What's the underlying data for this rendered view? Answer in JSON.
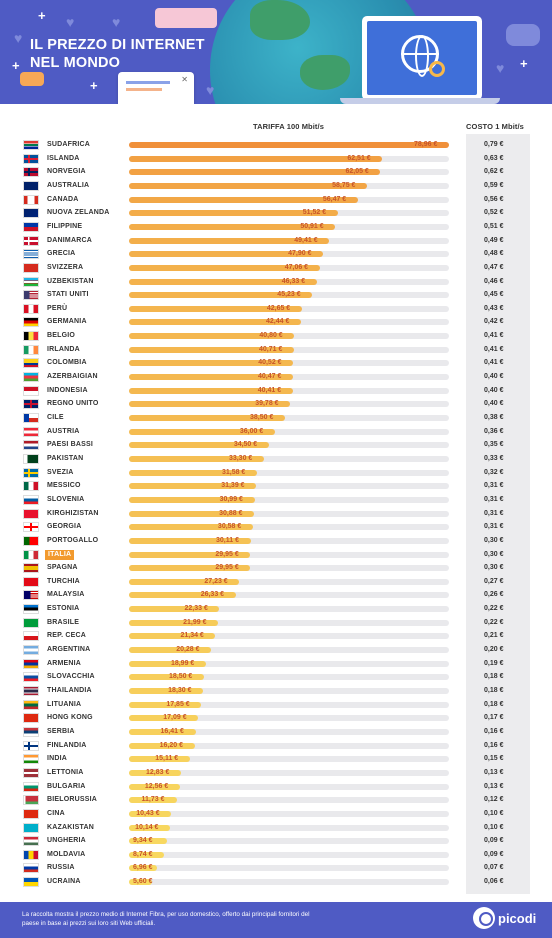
{
  "header": {
    "title_line1": "IL PREZZO DI INTERNET",
    "title_line2": "NEL MONDO"
  },
  "columns": {
    "tariff": "TARIFFA 100 Mbit/s",
    "cost": "COSTO 1 Mbit/s"
  },
  "chart_data": {
    "type": "bar",
    "orientation": "horizontal",
    "value_max": 78.96,
    "highlight": "ITALIA",
    "rows": [
      {
        "country": "SUDAFRICA",
        "price": 78.96,
        "price_label": "78,96 €",
        "cost_label": "0,79 €",
        "flag": "za"
      },
      {
        "country": "ISLANDA",
        "price": 62.51,
        "price_label": "62,51 €",
        "cost_label": "0,63 €",
        "flag": "is"
      },
      {
        "country": "NORVEGIA",
        "price": 62.05,
        "price_label": "62,05 €",
        "cost_label": "0,62 €",
        "flag": "no"
      },
      {
        "country": "AUSTRALIA",
        "price": 58.75,
        "price_label": "58,75 €",
        "cost_label": "0,59 €",
        "flag": "au"
      },
      {
        "country": "CANADA",
        "price": 56.47,
        "price_label": "56,47 €",
        "cost_label": "0,56 €",
        "flag": "ca"
      },
      {
        "country": "NUOVA ZELANDA",
        "price": 51.52,
        "price_label": "51,52 €",
        "cost_label": "0,52 €",
        "flag": "nz"
      },
      {
        "country": "FILIPPINE",
        "price": 50.91,
        "price_label": "50,91 €",
        "cost_label": "0,51 €",
        "flag": "ph"
      },
      {
        "country": "DANIMARCA",
        "price": 49.41,
        "price_label": "49,41 €",
        "cost_label": "0,49 €",
        "flag": "dk"
      },
      {
        "country": "GRECIA",
        "price": 47.9,
        "price_label": "47,90 €",
        "cost_label": "0,48 €",
        "flag": "gr"
      },
      {
        "country": "SVIZZERA",
        "price": 47.06,
        "price_label": "47,06 €",
        "cost_label": "0,47 €",
        "flag": "ch"
      },
      {
        "country": "UZBEKISTAN",
        "price": 46.33,
        "price_label": "46,33 €",
        "cost_label": "0,46 €",
        "flag": "uz"
      },
      {
        "country": "STATI UNITI",
        "price": 45.23,
        "price_label": "45,23 €",
        "cost_label": "0,45 €",
        "flag": "us"
      },
      {
        "country": "PERÙ",
        "price": 42.65,
        "price_label": "42,65 €",
        "cost_label": "0,43 €",
        "flag": "pe"
      },
      {
        "country": "GERMANIA",
        "price": 42.44,
        "price_label": "42,44 €",
        "cost_label": "0,42 €",
        "flag": "de"
      },
      {
        "country": "BELGIO",
        "price": 40.8,
        "price_label": "40,80 €",
        "cost_label": "0,41 €",
        "flag": "be"
      },
      {
        "country": "IRLANDA",
        "price": 40.71,
        "price_label": "40,71 €",
        "cost_label": "0,41 €",
        "flag": "ie"
      },
      {
        "country": "COLOMBIA",
        "price": 40.52,
        "price_label": "40,52 €",
        "cost_label": "0,41 €",
        "flag": "co"
      },
      {
        "country": "AZERBAIGIAN",
        "price": 40.47,
        "price_label": "40,47 €",
        "cost_label": "0,40 €",
        "flag": "az"
      },
      {
        "country": "INDONESIA",
        "price": 40.41,
        "price_label": "40,41 €",
        "cost_label": "0,40 €",
        "flag": "id"
      },
      {
        "country": "REGNO UNITO",
        "price": 39.78,
        "price_label": "39,78 €",
        "cost_label": "0,40 €",
        "flag": "gb"
      },
      {
        "country": "CILE",
        "price": 38.5,
        "price_label": "38,50 €",
        "cost_label": "0,38 €",
        "flag": "cl"
      },
      {
        "country": "AUSTRIA",
        "price": 36.0,
        "price_label": "36,00 €",
        "cost_label": "0,36 €",
        "flag": "at"
      },
      {
        "country": "PAESI BASSI",
        "price": 34.5,
        "price_label": "34,50 €",
        "cost_label": "0,35 €",
        "flag": "nl"
      },
      {
        "country": "PAKISTAN",
        "price": 33.3,
        "price_label": "33,30 €",
        "cost_label": "0,33 €",
        "flag": "pk"
      },
      {
        "country": "SVEZIA",
        "price": 31.58,
        "price_label": "31,58 €",
        "cost_label": "0,32 €",
        "flag": "se"
      },
      {
        "country": "MESSICO",
        "price": 31.39,
        "price_label": "31,39 €",
        "cost_label": "0,31 €",
        "flag": "mx"
      },
      {
        "country": "SLOVENIA",
        "price": 30.99,
        "price_label": "30,99 €",
        "cost_label": "0,31 €",
        "flag": "si"
      },
      {
        "country": "KIRGHIZISTAN",
        "price": 30.88,
        "price_label": "30,88 €",
        "cost_label": "0,31 €",
        "flag": "kg"
      },
      {
        "country": "GEORGIA",
        "price": 30.58,
        "price_label": "30,58 €",
        "cost_label": "0,31 €",
        "flag": "ge"
      },
      {
        "country": "PORTOGALLO",
        "price": 30.11,
        "price_label": "30,11 €",
        "cost_label": "0,30 €",
        "flag": "pt"
      },
      {
        "country": "ITALIA",
        "price": 29.95,
        "price_label": "29,95 €",
        "cost_label": "0,30 €",
        "flag": "it"
      },
      {
        "country": "SPAGNA",
        "price": 29.95,
        "price_label": "29,95 €",
        "cost_label": "0,30 €",
        "flag": "es"
      },
      {
        "country": "TURCHIA",
        "price": 27.23,
        "price_label": "27,23 €",
        "cost_label": "0,27 €",
        "flag": "tr"
      },
      {
        "country": "MALAYSIA",
        "price": 26.33,
        "price_label": "26,33 €",
        "cost_label": "0,26 €",
        "flag": "my"
      },
      {
        "country": "ESTONIA",
        "price": 22.33,
        "price_label": "22,33 €",
        "cost_label": "0,22 €",
        "flag": "ee"
      },
      {
        "country": "BRASILE",
        "price": 21.99,
        "price_label": "21,99 €",
        "cost_label": "0,22 €",
        "flag": "br"
      },
      {
        "country": "REP. CECA",
        "price": 21.34,
        "price_label": "21,34 €",
        "cost_label": "0,21 €",
        "flag": "cz"
      },
      {
        "country": "ARGENTINA",
        "price": 20.28,
        "price_label": "20,28 €",
        "cost_label": "0,20 €",
        "flag": "ar"
      },
      {
        "country": "ARMENIA",
        "price": 18.99,
        "price_label": "18,99 €",
        "cost_label": "0,19 €",
        "flag": "am"
      },
      {
        "country": "SLOVACCHIA",
        "price": 18.5,
        "price_label": "18,50 €",
        "cost_label": "0,18 €",
        "flag": "sk"
      },
      {
        "country": "THAILANDIA",
        "price": 18.3,
        "price_label": "18,30 €",
        "cost_label": "0,18 €",
        "flag": "th"
      },
      {
        "country": "LITUANIA",
        "price": 17.85,
        "price_label": "17,85 €",
        "cost_label": "0,18 €",
        "flag": "lt"
      },
      {
        "country": "HONG KONG",
        "price": 17.09,
        "price_label": "17,09 €",
        "cost_label": "0,17 €",
        "flag": "hk"
      },
      {
        "country": "SERBIA",
        "price": 16.41,
        "price_label": "16,41 €",
        "cost_label": "0,16 €",
        "flag": "rs"
      },
      {
        "country": "FINLANDIA",
        "price": 16.2,
        "price_label": "16,20 €",
        "cost_label": "0,16 €",
        "flag": "fi"
      },
      {
        "country": "INDIA",
        "price": 15.11,
        "price_label": "15,11 €",
        "cost_label": "0,15 €",
        "flag": "in"
      },
      {
        "country": "LETTONIA",
        "price": 12.83,
        "price_label": "12,83 €",
        "cost_label": "0,13 €",
        "flag": "lv"
      },
      {
        "country": "BULGARIA",
        "price": 12.56,
        "price_label": "12,56 €",
        "cost_label": "0,13 €",
        "flag": "bg"
      },
      {
        "country": "BIELORUSSIA",
        "price": 11.73,
        "price_label": "11,73 €",
        "cost_label": "0,12 €",
        "flag": "by"
      },
      {
        "country": "CINA",
        "price": 10.43,
        "price_label": "10,43 €",
        "cost_label": "0,10 €",
        "flag": "cn"
      },
      {
        "country": "KAZAKISTAN",
        "price": 10.14,
        "price_label": "10,14 €",
        "cost_label": "0,10 €",
        "flag": "kz"
      },
      {
        "country": "UNGHERIA",
        "price": 9.34,
        "price_label": "9,34 €",
        "cost_label": "0,09 €",
        "flag": "hu"
      },
      {
        "country": "MOLDAVIA",
        "price": 8.74,
        "price_label": "8,74 €",
        "cost_label": "0,09 €",
        "flag": "md"
      },
      {
        "country": "RUSSIA",
        "price": 6.96,
        "price_label": "6,96 €",
        "cost_label": "0,07 €",
        "flag": "ru"
      },
      {
        "country": "UCRAINA",
        "price": 5.6,
        "price_label": "5,60 €",
        "cost_label": "0,06 €",
        "flag": "ua"
      }
    ]
  },
  "colors": {
    "brand": "#4f5bc4",
    "bar_high": "#f0903a",
    "bar_low": "#f8dc62",
    "price_text": "#c8552a",
    "highlight": "#f29a2e"
  },
  "footer": {
    "note": "La raccolta mostra il prezzo medio di Internet Fibra, per uso domestico, offerto dai principali fornitori del paese in base ai prezzi sui loro siti Web ufficiali.",
    "brand": "picodi"
  }
}
